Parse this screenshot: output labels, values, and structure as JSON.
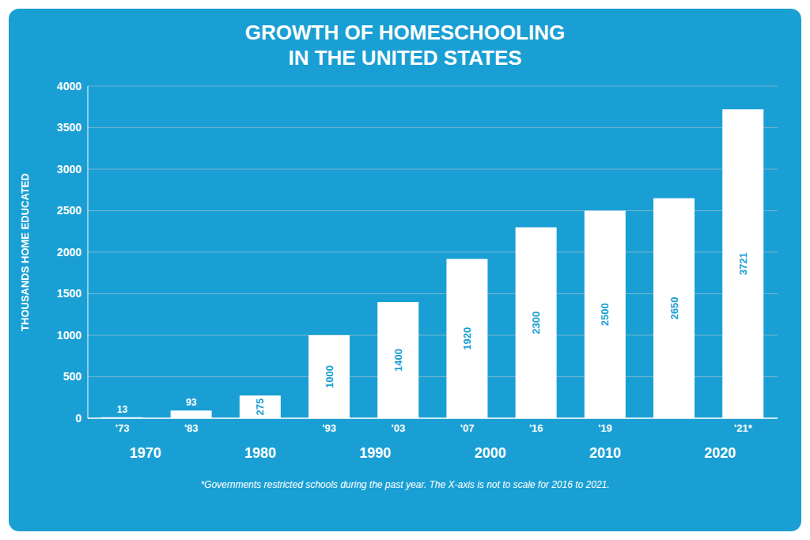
{
  "chart_data": {
    "type": "bar",
    "title": "GROWTH OF HOMESCHOOLING",
    "subtitle": "IN THE UNITED STATES",
    "y_label": "THOUSANDS HOME EDUCATED",
    "categories": [
      "'73",
      "'83",
      null,
      "'93",
      "'03",
      "'07",
      "'16",
      "'19",
      null,
      "'21*"
    ],
    "values": [
      13,
      93,
      275,
      1000,
      1400,
      1920,
      2300,
      2500,
      2650,
      3721
    ],
    "color": "#ffffff",
    "background_color": "#1a9fd4",
    "label_color": "#1a9fd4",
    "ylim": [
      0,
      4000
    ],
    "yticks": [
      0,
      500,
      1000,
      1500,
      2000,
      2500,
      3000,
      3500,
      4000
    ],
    "grid": true,
    "data_labels": true,
    "annotations": [
      "1970",
      "1980",
      "1990",
      "2000",
      "2010",
      "2020"
    ],
    "footnote": "*Governments restricted schools during the past year. The X-axis is not to scale for 2016 to 2021."
  }
}
